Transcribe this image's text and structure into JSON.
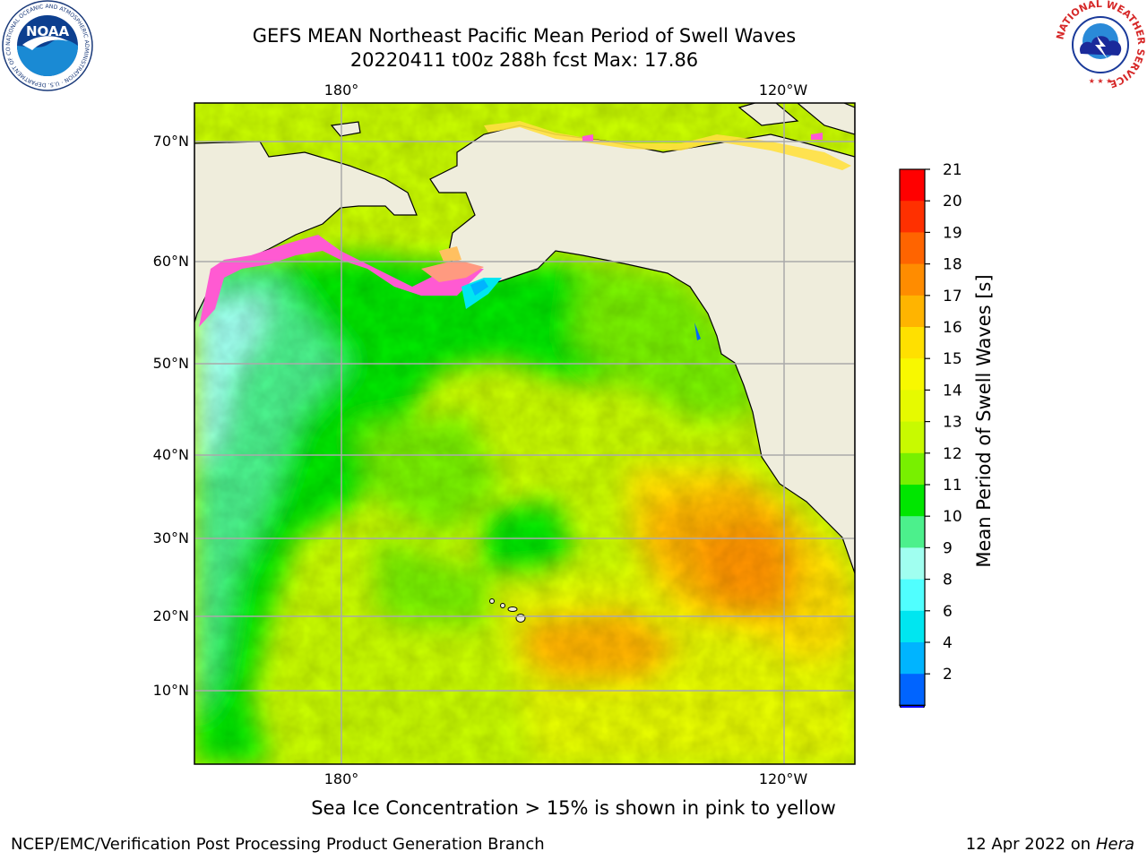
{
  "header": {
    "title_line1": "GEFS MEAN Northeast Pacific Mean Period of Swell Waves",
    "title_line2": "20220411 t00z 288h fcst   Max: 17.86"
  },
  "logos": {
    "left": "NOAA",
    "left_ring_text": "NATIONAL OCEANIC AND ATMOSPHERIC ADMINISTRATION · U.S. DEPARTMENT OF COMMERCE",
    "right_ring_text": "NATIONAL WEATHER SERVICE"
  },
  "map": {
    "lon_labels_top": [
      "180°",
      "120°W"
    ],
    "lon_labels_bottom": [
      "180°",
      "120°W"
    ],
    "lat_labels": [
      "70°N",
      "60°N",
      "50°N",
      "40°N",
      "30°N",
      "20°N",
      "10°N"
    ],
    "land_color": "#efeddc",
    "ice_colors": [
      "#ff5ad2",
      "#ff9a80",
      "#ffc060",
      "#ffe040"
    ]
  },
  "colorbar": {
    "title": "Mean Period of Swell Waves [s]",
    "ticks": [
      "21",
      "20",
      "19",
      "18",
      "17",
      "16",
      "15",
      "14",
      "13",
      "12",
      "11",
      "10",
      "9",
      "8",
      "6",
      "4",
      "2"
    ],
    "colors": [
      "#ff0000",
      "#ff3000",
      "#ff6400",
      "#ff8c00",
      "#ffb400",
      "#ffe000",
      "#f8f800",
      "#e6fa00",
      "#c8fa00",
      "#78f000",
      "#00e600",
      "#4cf08c",
      "#a0fff0",
      "#50ffff",
      "#00e6f0",
      "#00b4ff",
      "#0064ff"
    ],
    "extend_color": "#0000ff",
    "range": [
      2,
      21
    ],
    "unit": "s"
  },
  "footer": {
    "note": "Sea Ice Concentration > 15% is shown in pink to yellow",
    "credit": "NCEP/EMC/Verification Post Processing Product Generation Branch",
    "date_prefix": "12 Apr 2022 on ",
    "machine": "Hera"
  }
}
